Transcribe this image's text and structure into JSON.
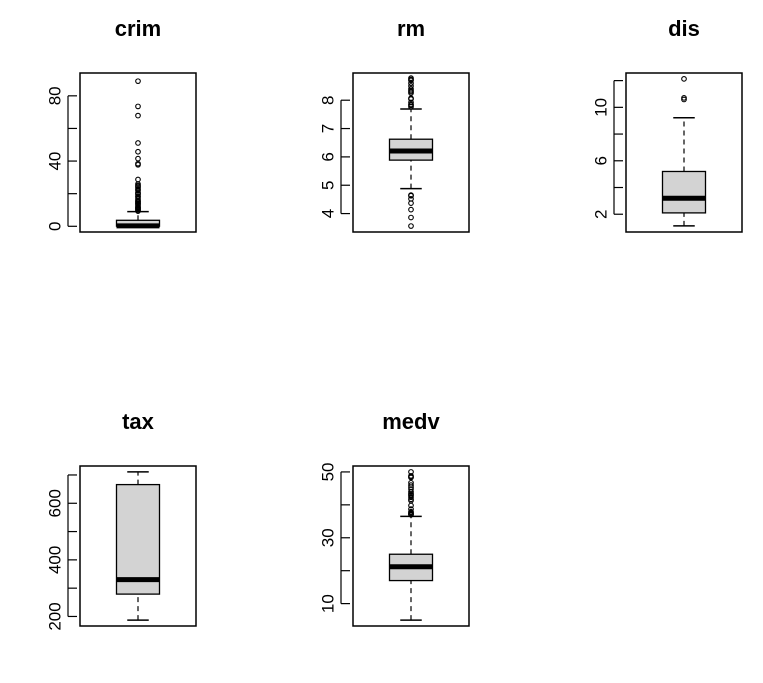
{
  "chart_data": [
    {
      "type": "boxplot",
      "title": "crim",
      "ylim": [
        -3.5,
        94
      ],
      "yticks": [
        0,
        20,
        40,
        60,
        80
      ],
      "ytick_labels": [
        "0",
        "",
        "40",
        "",
        "80"
      ],
      "box": {
        "whisker_low": 0.006,
        "q1": 0.08,
        "median": 0.26,
        "q3": 3.68,
        "whisker_high": 8.98
      },
      "outliers": [
        9.3,
        9.9,
        10.2,
        10.8,
        11.1,
        11.6,
        12.0,
        12.8,
        13.5,
        14.0,
        14.3,
        15.0,
        15.3,
        15.9,
        16.8,
        17.9,
        18.5,
        19.6,
        20.1,
        20.7,
        22.0,
        22.6,
        23.6,
        24.4,
        25.0,
        25.9,
        28.7,
        37.7,
        38.4,
        41.5,
        45.7,
        51.1,
        67.9,
        73.5,
        88.98
      ],
      "fill": "#d3d3d3"
    },
    {
      "type": "boxplot",
      "title": "rm",
      "ylim": [
        3.35,
        8.96
      ],
      "yticks": [
        4,
        5,
        6,
        7,
        8
      ],
      "ytick_labels": [
        "4",
        "5",
        "6",
        "7",
        "8"
      ],
      "box": {
        "whisker_low": 4.88,
        "q1": 5.886,
        "median": 6.21,
        "q3": 6.624,
        "whisker_high": 7.69
      },
      "outliers": [
        3.56,
        3.86,
        4.14,
        4.37,
        4.52,
        4.63,
        4.65,
        7.77,
        7.82,
        7.85,
        7.92,
        8.04,
        8.07,
        8.25,
        8.3,
        8.34,
        8.4,
        8.5,
        8.6,
        8.7,
        8.73,
        8.78
      ],
      "fill": "#d3d3d3"
    },
    {
      "type": "boxplot",
      "title": "dis",
      "ylim": [
        0.67,
        12.57
      ],
      "yticks": [
        2,
        4,
        6,
        8,
        10,
        12
      ],
      "ytick_labels": [
        "2",
        "",
        "6",
        "",
        "10",
        ""
      ],
      "box": {
        "whisker_low": 1.13,
        "q1": 2.1,
        "median": 3.2,
        "q3": 5.2,
        "whisker_high": 9.22
      },
      "outliers": [
        10.59,
        10.71,
        12.13
      ],
      "fill": "#d3d3d3"
    },
    {
      "type": "boxplot",
      "title": "tax",
      "ylim": [
        166.3,
        731.7
      ],
      "yticks": [
        200,
        300,
        400,
        500,
        600,
        700
      ],
      "ytick_labels": [
        "200",
        "",
        "400",
        "",
        "600",
        ""
      ],
      "box": {
        "whisker_low": 187,
        "q1": 279,
        "median": 330,
        "q3": 666,
        "whisker_high": 711
      },
      "outliers": [],
      "fill": "#d3d3d3"
    },
    {
      "type": "boxplot",
      "title": "medv",
      "ylim": [
        3.2,
        51.8
      ],
      "yticks": [
        10,
        20,
        30,
        40,
        50
      ],
      "ytick_labels": [
        "10",
        "",
        "30",
        "",
        "50"
      ],
      "box": {
        "whisker_low": 5.0,
        "q1": 17.0,
        "median": 21.2,
        "q3": 25.0,
        "whisker_high": 36.5
      },
      "outliers": [
        37.0,
        37.2,
        37.3,
        37.6,
        37.9,
        38.7,
        39.8,
        41.3,
        41.7,
        42.3,
        42.8,
        43.1,
        43.5,
        44.0,
        44.8,
        45.4,
        46.0,
        46.7,
        48.3,
        48.5,
        48.8,
        50.0
      ],
      "fill": "#d3d3d3"
    }
  ]
}
